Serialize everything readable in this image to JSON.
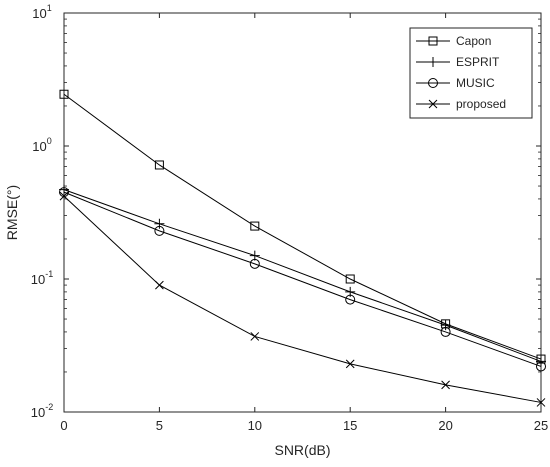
{
  "chart_data": {
    "type": "line",
    "xlabel": "SNR(dB)",
    "ylabel": "RMSE(°)",
    "x": [
      0,
      5,
      10,
      15,
      20,
      25
    ],
    "xlim": [
      0,
      25
    ],
    "ylim": [
      0.01,
      10
    ],
    "yscale": "log",
    "grid": false,
    "legend_position": "top-right",
    "xticks": [
      "0",
      "5",
      "10",
      "15",
      "20",
      "25"
    ],
    "yticks": [
      {
        "base": "10",
        "exp": "-2"
      },
      {
        "base": "10",
        "exp": "-1"
      },
      {
        "base": "10",
        "exp": "0"
      },
      {
        "base": "10",
        "exp": "1"
      }
    ],
    "series": [
      {
        "name": "Capon",
        "marker": "square",
        "values": [
          2.45,
          0.72,
          0.25,
          0.1,
          0.046,
          0.025
        ]
      },
      {
        "name": "ESPRIT",
        "marker": "plus",
        "values": [
          0.47,
          0.26,
          0.15,
          0.08,
          0.045,
          0.024
        ]
      },
      {
        "name": "MUSIC",
        "marker": "circle",
        "values": [
          0.45,
          0.23,
          0.13,
          0.07,
          0.04,
          0.022
        ]
      },
      {
        "name": "proposed",
        "marker": "x",
        "values": [
          0.42,
          0.09,
          0.037,
          0.023,
          0.016,
          0.0118
        ]
      }
    ],
    "colors": {
      "line": "#000000",
      "axis": "#262626"
    }
  }
}
